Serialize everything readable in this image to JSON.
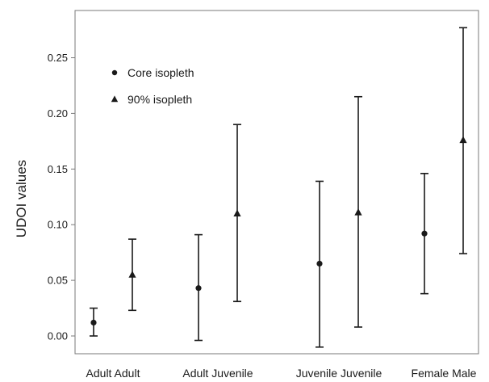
{
  "chart_data": {
    "type": "scatter",
    "ylabel": "UDOI values",
    "xlabel": "",
    "title": "",
    "ylim": [
      -0.02,
      0.285
    ],
    "yticks": [
      0.0,
      0.05,
      0.1,
      0.15,
      0.2,
      0.25
    ],
    "ytick_labels": [
      "0.00",
      "0.05",
      "0.10",
      "0.15",
      "0.20",
      "0.25"
    ],
    "categories": [
      "Adult Adult",
      "Adult Juvenile",
      "Juvenile Juvenile",
      "Female Male"
    ],
    "legend_position": "top-left",
    "grid": false,
    "series": [
      {
        "name": "Core isopleth",
        "marker": "circle",
        "values": [
          0.012,
          0.043,
          0.065,
          0.092
        ],
        "lower": [
          0.0,
          -0.004,
          -0.01,
          0.038
        ],
        "upper": [
          0.025,
          0.091,
          0.139,
          0.146
        ]
      },
      {
        "name": "90% isopleth",
        "marker": "triangle",
        "values": [
          0.055,
          0.11,
          0.111,
          0.176
        ],
        "lower": [
          0.023,
          0.031,
          0.008,
          0.074
        ],
        "upper": [
          0.087,
          0.19,
          0.215,
          0.277
        ]
      }
    ],
    "colors": {
      "marks": "#1a1a1a",
      "frame": "#7a7a7a"
    }
  }
}
